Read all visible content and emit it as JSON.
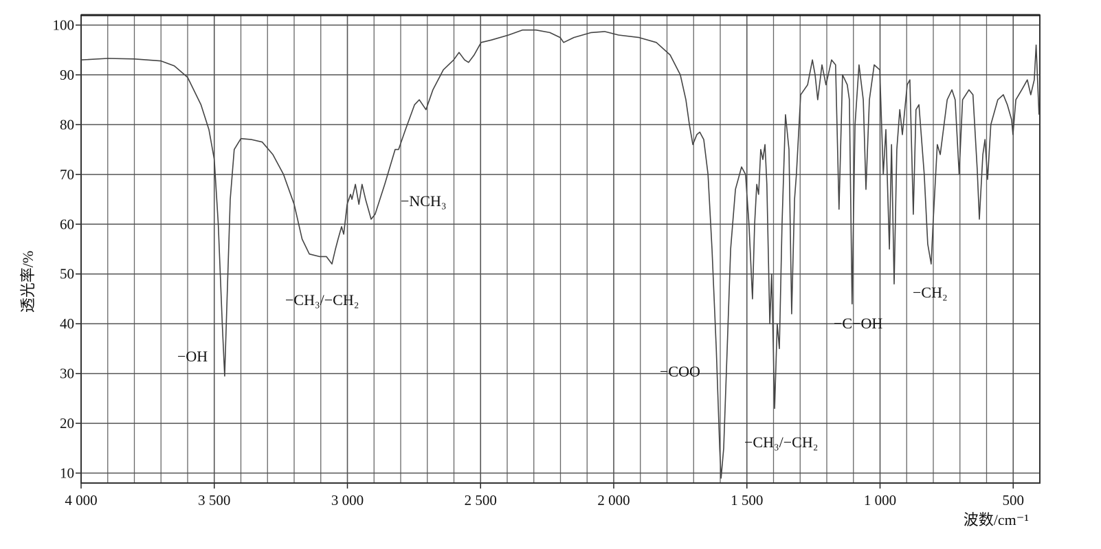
{
  "chart_data": {
    "type": "line",
    "ylabel": "透光率/%",
    "xlabel": "波数/cm⁻¹",
    "annotations": [
      "−OH",
      "−CH₃/−CH₂",
      "−NCH₃",
      "−COO",
      "−CH₃/−CH₂",
      "−C−OH",
      "−CH₂"
    ],
    "color": "#444444",
    "grid": true,
    "xlim": [
      4000,
      400
    ],
    "ylim": [
      8,
      102
    ],
    "xticks": [
      {
        "value": 4000,
        "label": "4 000"
      },
      {
        "value": 3500,
        "label": "3 500"
      },
      {
        "value": 3000,
        "label": "3 000"
      },
      {
        "value": 2500,
        "label": "2 500"
      },
      {
        "value": 2000,
        "label": "2 000"
      },
      {
        "value": 1500,
        "label": "1 500"
      },
      {
        "value": 1000,
        "label": "1 000"
      },
      500
    ],
    "xgrid": [
      3900,
      3800,
      3700,
      3600,
      3400,
      3300,
      3200,
      3100,
      2900,
      2800,
      2700,
      2600,
      2400,
      2300,
      2200,
      2100,
      1900,
      1800,
      1700,
      1600,
      1400,
      1300,
      1200,
      1100,
      900,
      800,
      700,
      600
    ],
    "yticks": [
      10,
      20,
      30,
      40,
      50,
      60,
      70,
      80,
      90,
      100
    ],
    "x": [
      4000,
      3900,
      3800,
      3700,
      3650,
      3600,
      3550,
      3520,
      3500,
      3485,
      3470,
      3461,
      3452,
      3440,
      3425,
      3400,
      3360,
      3320,
      3280,
      3240,
      3200,
      3170,
      3143,
      3105,
      3079,
      3058,
      3045,
      3035,
      3022,
      3014,
      3001,
      2988,
      2983,
      2970,
      2957,
      2945,
      2932,
      2911,
      2896,
      2860,
      2821,
      2808,
      2782,
      2748,
      2730,
      2705,
      2679,
      2640,
      2601,
      2581,
      2560,
      2545,
      2524,
      2498,
      2459,
      2395,
      2343,
      2292,
      2240,
      2201,
      2188,
      2150,
      2085,
      2034,
      1982,
      1905,
      1840,
      1788,
      1750,
      1729,
      1716,
      1703,
      1688,
      1677,
      1662,
      1646,
      1631,
      1615,
      1602,
      1597,
      1587,
      1574,
      1561,
      1543,
      1520,
      1505,
      1492,
      1479,
      1471,
      1463,
      1456,
      1448,
      1440,
      1432,
      1425,
      1414,
      1407,
      1396,
      1386,
      1378,
      1368,
      1355,
      1342,
      1332,
      1321,
      1314,
      1298,
      1272,
      1254,
      1244,
      1234,
      1218,
      1203,
      1182,
      1167,
      1154,
      1141,
      1123,
      1115,
      1105,
      1094,
      1079,
      1063,
      1053,
      1040,
      1022,
      1001,
      988,
      978,
      965,
      957,
      947,
      937,
      926,
      916,
      898,
      888,
      875,
      865,
      854,
      834,
      821,
      808,
      801,
      785,
      774,
      748,
      730,
      718,
      703,
      690,
      666,
      651,
      635,
      627,
      614,
      606,
      596,
      584,
      558,
      537,
      522,
      506,
      501,
      490,
      468,
      447,
      434,
      421,
      414,
      403
    ],
    "values": [
      93,
      93.3,
      93.2,
      92.8,
      91.8,
      89.5,
      84,
      79,
      73,
      60,
      40,
      29.5,
      45,
      65,
      75,
      77.2,
      77,
      76.5,
      74,
      70,
      64,
      57,
      54,
      53.5,
      53.5,
      52,
      55,
      57,
      59.5,
      58,
      64,
      66,
      65,
      68,
      64,
      68,
      65,
      61,
      62,
      68,
      75,
      75,
      79,
      84,
      85,
      83,
      87,
      91,
      93,
      94.5,
      93,
      92.5,
      94,
      96.5,
      97,
      98,
      99,
      99,
      98.5,
      97.5,
      96.5,
      97.5,
      98.5,
      98.7,
      98,
      97.5,
      96.5,
      94,
      90,
      85,
      80,
      76,
      78,
      78.5,
      77,
      70,
      55,
      35,
      15,
      9,
      15,
      35,
      55,
      67,
      71.5,
      70,
      60,
      45,
      60,
      68,
      66,
      75,
      73,
      76,
      68,
      40,
      50,
      23,
      40,
      35,
      60,
      82,
      75,
      42,
      65,
      70,
      86,
      88,
      93,
      90,
      85,
      92,
      88,
      93,
      92,
      63,
      90,
      88,
      85,
      44,
      80,
      92,
      85,
      67,
      85,
      92,
      91,
      70,
      79,
      55,
      76,
      48,
      75,
      83,
      78,
      88,
      89,
      62,
      83,
      84,
      70,
      56,
      52,
      60,
      76,
      74,
      85,
      87,
      85,
      70,
      85,
      87,
      86,
      71,
      61,
      74,
      77,
      69,
      80,
      85,
      86,
      84,
      81,
      78,
      85,
      87,
      89,
      86,
      89,
      96,
      82
    ]
  }
}
